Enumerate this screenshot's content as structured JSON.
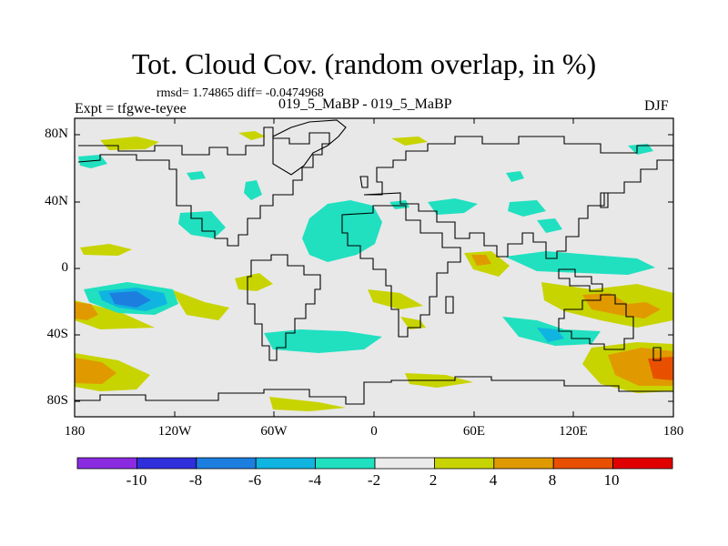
{
  "title": "Tot. Cloud Cov. (random overlap, in %)",
  "stats": "rmsd= 1.74865 diff= -0.0474968",
  "experiment": "Expt = tfgwe-teyee",
  "cases": "019_5_MaBP - 019_5_MaBP",
  "season": "DJF",
  "map": {
    "lat_labels": [
      "80N",
      "40N",
      "0",
      "40S",
      "80S"
    ],
    "lon_labels": [
      "180",
      "120W",
      "60W",
      "0",
      "60E",
      "120E",
      "180"
    ],
    "background_color": "#e8e8e8",
    "coastline_color": "#000000"
  },
  "colorbar": {
    "labels": [
      "-10",
      "-8",
      "-6",
      "-4",
      "-2",
      "2",
      "4",
      "8",
      "10"
    ],
    "colors": [
      "#8a2be2",
      "#2f2fdc",
      "#1c7fe0",
      "#10b4e0",
      "#20e0c0",
      "#ebebeb",
      "#c8d400",
      "#e09a00",
      "#e85000",
      "#e00000"
    ]
  }
}
